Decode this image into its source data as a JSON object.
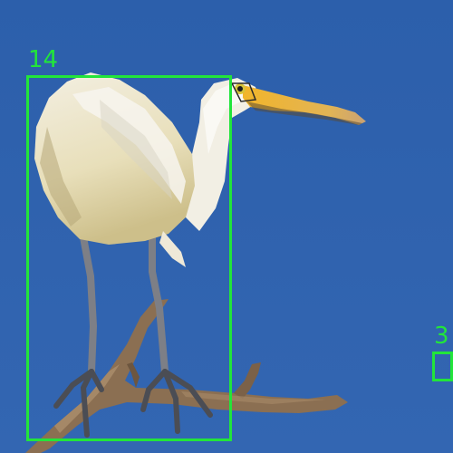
{
  "scene": {
    "subject": "spoonbill-photo",
    "colors": {
      "sky": "#2f62ad",
      "box": "#22e53a"
    }
  },
  "annotations": [
    {
      "id": "box-14",
      "label": "14"
    },
    {
      "id": "box-3",
      "label": "3"
    }
  ]
}
